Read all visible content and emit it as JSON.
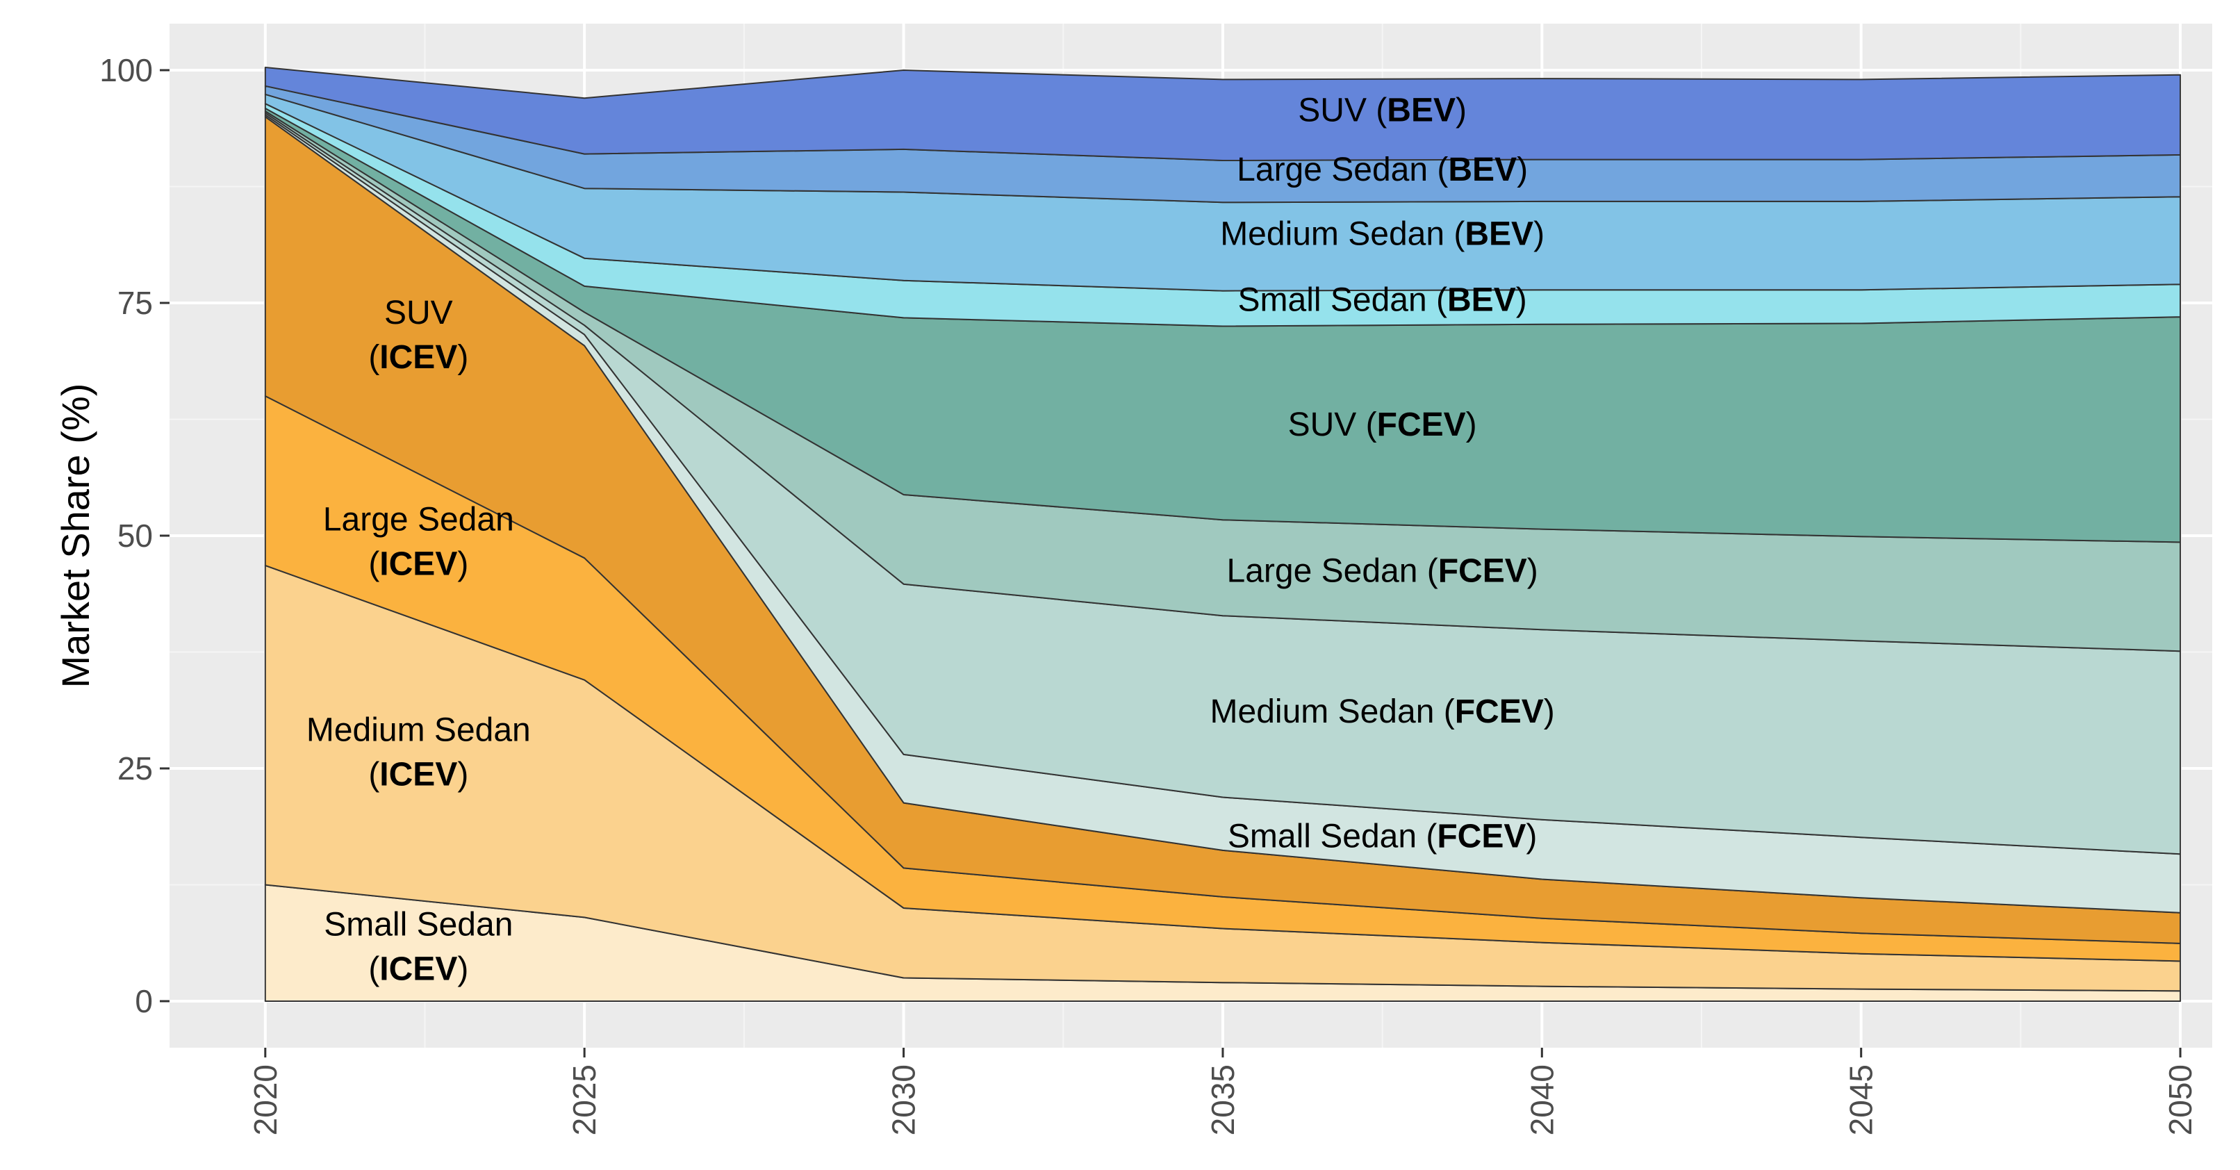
{
  "chart_data": {
    "type": "area",
    "stacked": true,
    "title": "",
    "xlabel": "",
    "ylabel": "Market Share (%)",
    "x": [
      2020,
      2025,
      2030,
      2035,
      2040,
      2045,
      2050
    ],
    "xticks": [
      "2020",
      "2025",
      "2030",
      "2035",
      "2040",
      "2045",
      "2050"
    ],
    "yticks": [
      "0",
      "25",
      "50",
      "75",
      "100"
    ],
    "xlim": [
      2018.5,
      2050.5
    ],
    "ylim": [
      -5,
      105
    ],
    "grid": true,
    "legend": "none (inline labels)",
    "series": [
      {
        "name": "Small Sedan (ICEV)",
        "label_main": "Small Sedan",
        "label_tag": "ICEV",
        "color": "#FDEBCB",
        "values": [
          12.5,
          9.0,
          2.5,
          2.0,
          1.6,
          1.3,
          1.1
        ],
        "label_at": [
          2022.4,
          6.0
        ],
        "label_lines": 2
      },
      {
        "name": "Medium Sedan (ICEV)",
        "label_main": "Medium Sedan",
        "label_tag": "ICEV",
        "color": "#FBD28E",
        "values": [
          34.3,
          25.5,
          7.5,
          5.8,
          4.7,
          3.8,
          3.2
        ],
        "label_at": [
          2022.4,
          26.9
        ],
        "label_lines": 2
      },
      {
        "name": "Large Sedan (ICEV)",
        "label_main": "Large Sedan",
        "label_tag": "ICEV",
        "color": "#FBB23F",
        "values": [
          18.2,
          13.1,
          4.3,
          3.4,
          2.6,
          2.2,
          1.9
        ],
        "label_at": [
          2022.4,
          49.5
        ],
        "label_lines": 2
      },
      {
        "name": "SUV (ICEV)",
        "label_main": "SUV",
        "label_tag": "ICEV",
        "color": "#E89D31",
        "values": [
          30.0,
          22.8,
          7.0,
          5.0,
          4.2,
          3.8,
          3.3
        ],
        "label_at": [
          2022.4,
          71.7
        ],
        "label_lines": 2
      },
      {
        "name": "Small Sedan (FCEV)",
        "label_main": "Small Sedan",
        "label_tag": "FCEV",
        "color": "#D2E5E1",
        "values": [
          0.2,
          1.2,
          5.2,
          5.7,
          6.4,
          6.5,
          6.3
        ],
        "label_at": [
          2037.5,
          17.8
        ],
        "label_lines": 1
      },
      {
        "name": "Medium Sedan (FCEV)",
        "label_main": "Medium Sedan",
        "label_tag": "FCEV",
        "color": "#B9D8D2",
        "values": [
          0.2,
          1.0,
          18.3,
          19.5,
          20.4,
          21.1,
          21.8
        ],
        "label_at": [
          2037.5,
          31.2
        ],
        "label_lines": 1
      },
      {
        "name": "Large Sedan (FCEV)",
        "label_main": "Large Sedan",
        "label_tag": "FCEV",
        "color": "#A0C9BF",
        "values": [
          0.2,
          1.4,
          9.6,
          10.3,
          10.8,
          11.2,
          11.7
        ],
        "label_at": [
          2037.5,
          46.3
        ],
        "label_lines": 1
      },
      {
        "name": "SUV (FCEV)",
        "label_main": "SUV",
        "label_tag": "FCEV",
        "color": "#72B0A2",
        "values": [
          0.3,
          2.8,
          19.0,
          20.8,
          22.0,
          22.9,
          24.2
        ],
        "label_at": [
          2037.5,
          62.0
        ],
        "label_lines": 1
      },
      {
        "name": "Small Sedan (BEV)",
        "label_main": "Small Sedan",
        "label_tag": "BEV",
        "color": "#95E2EC",
        "values": [
          0.5,
          3.0,
          4.0,
          3.8,
          3.7,
          3.6,
          3.5
        ],
        "label_at": [
          2037.5,
          75.4
        ],
        "label_lines": 1
      },
      {
        "name": "Medium Sedan (BEV)",
        "label_main": "Medium Sedan",
        "label_tag": "BEV",
        "color": "#82C3E6",
        "values": [
          1.0,
          7.5,
          9.5,
          9.5,
          9.5,
          9.5,
          9.4
        ],
        "label_at": [
          2037.5,
          82.5
        ],
        "label_lines": 1
      },
      {
        "name": "Large Sedan (BEV)",
        "label_main": "Large Sedan",
        "label_tag": "BEV",
        "color": "#72A5DE",
        "values": [
          0.9,
          3.7,
          4.6,
          4.5,
          4.5,
          4.5,
          4.5
        ],
        "label_at": [
          2037.5,
          89.4
        ],
        "label_lines": 1
      },
      {
        "name": "SUV (BEV)",
        "label_main": "SUV",
        "label_tag": "BEV",
        "color": "#6485DA",
        "values": [
          2.0,
          6.0,
          8.5,
          8.7,
          8.7,
          8.6,
          8.6
        ],
        "label_at": [
          2037.5,
          95.8
        ],
        "label_lines": 1
      }
    ]
  }
}
